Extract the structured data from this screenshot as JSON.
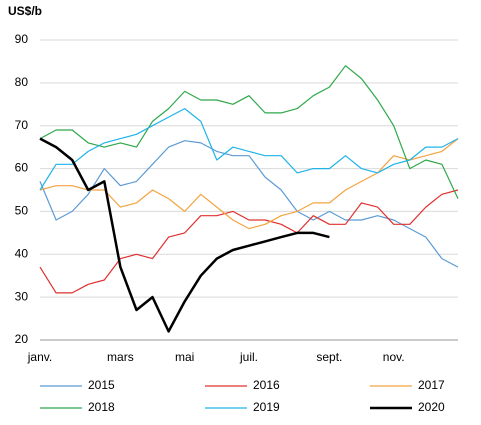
{
  "chart_data": {
    "type": "line",
    "y_label": "US$/b",
    "categories": [
      "janv.",
      null,
      null,
      null,
      null,
      "mars",
      null,
      null,
      null,
      "mai",
      null,
      null,
      null,
      "juil.",
      null,
      null,
      null,
      null,
      "sept.",
      null,
      null,
      null,
      "nov.",
      null,
      null,
      null,
      null
    ],
    "series": [
      {
        "name": "2015",
        "color": "#5b9bd5",
        "width": 1.2,
        "values": [
          57,
          48,
          50,
          54,
          60,
          56,
          57,
          61,
          65,
          66.5,
          66,
          64,
          63,
          63,
          58,
          55,
          50,
          48,
          50,
          48,
          48,
          49,
          48,
          46,
          44,
          39,
          37
        ]
      },
      {
        "name": "2016",
        "color": "#e0302e",
        "width": 1.2,
        "values": [
          37,
          31,
          31,
          33,
          34,
          39,
          40,
          39,
          44,
          45,
          49,
          49,
          50,
          48,
          48,
          47,
          45,
          49,
          47,
          47,
          52,
          51,
          47,
          47,
          51,
          54,
          55
        ]
      },
      {
        "name": "2017",
        "color": "#f4a340",
        "width": 1.2,
        "values": [
          55,
          56,
          56,
          55,
          55,
          51,
          52,
          55,
          53,
          50,
          54,
          51,
          48,
          46,
          47,
          49,
          50,
          52,
          52,
          55,
          57,
          59,
          63,
          62,
          63,
          64,
          67
        ]
      },
      {
        "name": "2018",
        "color": "#2ea84a",
        "width": 1.2,
        "values": [
          67,
          69,
          69,
          66,
          65,
          66,
          65,
          71,
          74,
          78,
          76,
          76,
          75,
          77,
          73,
          73,
          74,
          77,
          79,
          84,
          81,
          76,
          70,
          60,
          62,
          61,
          53
        ]
      },
      {
        "name": "2019",
        "color": "#1fb3e8",
        "width": 1.2,
        "values": [
          55,
          61,
          61,
          64,
          66,
          67,
          68,
          70,
          72,
          74,
          71,
          62,
          65,
          64,
          63,
          63,
          59,
          60,
          60,
          63,
          60,
          59,
          61,
          62,
          65,
          65,
          67
        ]
      },
      {
        "name": "2020",
        "color": "#000000",
        "width": 2.5,
        "values": [
          67,
          65,
          62,
          55,
          57,
          37,
          27,
          30,
          22,
          29,
          35,
          39,
          41,
          42,
          43,
          44,
          45,
          45,
          44,
          null,
          null,
          null,
          null,
          null,
          null,
          null,
          null
        ]
      }
    ],
    "ylim": [
      20,
      90
    ],
    "yticks": [
      20,
      30,
      40,
      50,
      60,
      70,
      80,
      90
    ],
    "grid": true
  }
}
